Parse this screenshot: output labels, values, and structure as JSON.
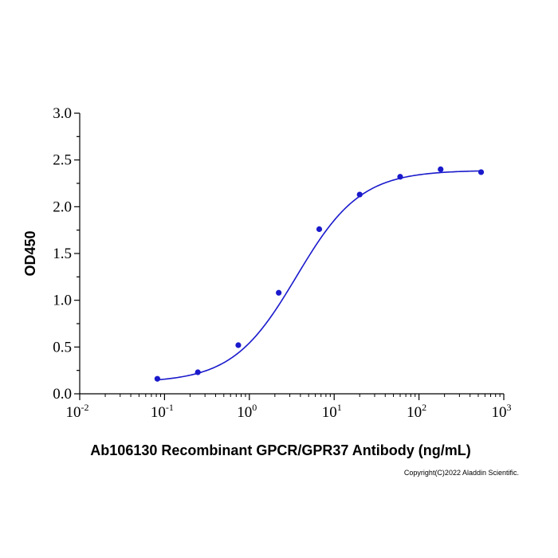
{
  "chart_data": {
    "type": "scatter",
    "xlabel": "Ab106130 Recombinant GPCR/GPR37 Antibody (ng/mL)",
    "ylabel": "OD450",
    "x_scale": "log",
    "xlim": [
      0.01,
      1000
    ],
    "ylim": [
      0,
      3.0
    ],
    "x_ticks": [
      {
        "base": "10",
        "exp": "-2",
        "value": 0.01
      },
      {
        "base": "10",
        "exp": "-1",
        "value": 0.1
      },
      {
        "base": "10",
        "exp": "0",
        "value": 1
      },
      {
        "base": "10",
        "exp": "1",
        "value": 10
      },
      {
        "base": "10",
        "exp": "2",
        "value": 100
      },
      {
        "base": "10",
        "exp": "3",
        "value": 1000
      }
    ],
    "y_ticks": [
      "0.0",
      "0.5",
      "1.0",
      "1.5",
      "2.0",
      "2.5",
      "3.0"
    ],
    "grid": false,
    "legend": "none",
    "series": [
      {
        "x": [
          0.0823,
          0.247,
          0.741,
          2.22,
          6.67,
          20,
          60,
          180,
          540
        ],
        "y": [
          0.16,
          0.23,
          0.52,
          1.08,
          1.76,
          2.13,
          2.32,
          2.4,
          2.37
        ],
        "marker": "circle",
        "fit": "4PL sigmoid"
      }
    ],
    "color": "#1a1acc"
  },
  "copyright": "Copyright(C)2022 Aladdin Scientific."
}
